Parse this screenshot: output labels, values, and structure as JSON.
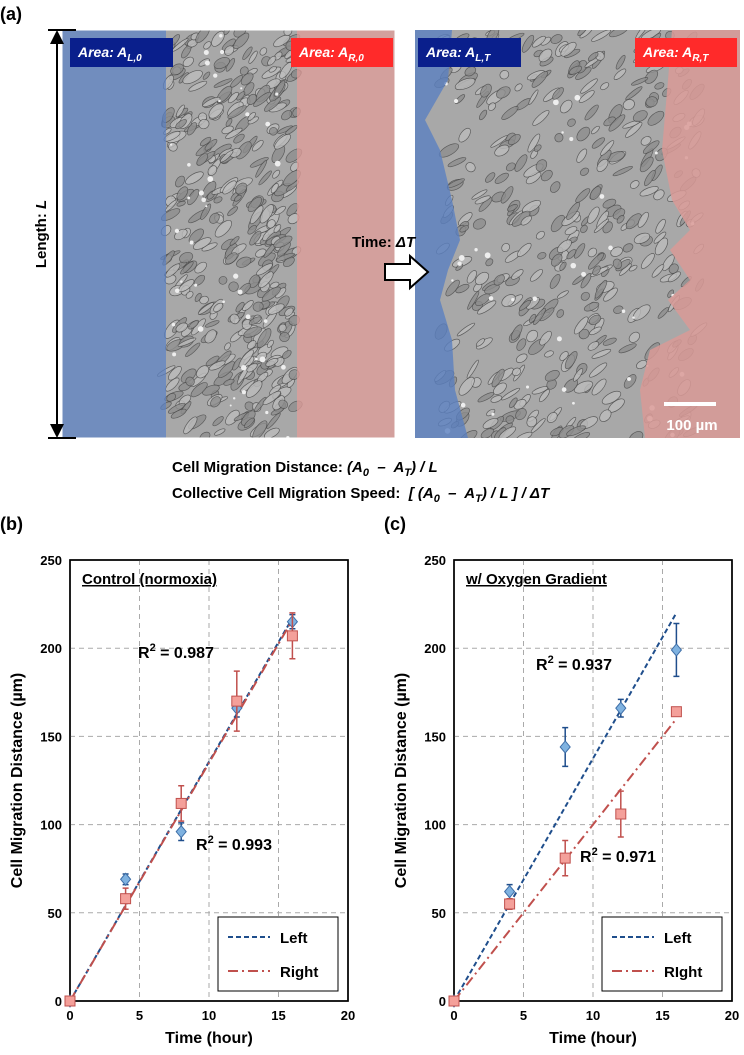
{
  "figure": {
    "panel_labels": [
      "(a)",
      "(b)",
      "(c)"
    ],
    "length_label": {
      "text": "Length: ",
      "var": "L"
    },
    "areas": [
      {
        "text": "Area: A",
        "sub": "L,0"
      },
      {
        "text": "Area: A",
        "sub": "R,0"
      },
      {
        "text": "Area: A",
        "sub": "L,T"
      },
      {
        "text": "Area: A",
        "sub": "R,T"
      }
    ],
    "time_label": {
      "text": "Time: ",
      "var": "ΔT"
    },
    "scale_bar": "100 µm",
    "formulas": [
      {
        "label": "Cell Migration Distance: ",
        "parts": [
          "(A",
          "0",
          "  –  A",
          "T",
          ") / L"
        ]
      },
      {
        "label": "Collective Cell Migration Speed:  ",
        "parts": [
          "[ (A",
          "0",
          "  –  A",
          "T",
          ") / L ] / ΔT"
        ]
      }
    ]
  },
  "chart_data": [
    {
      "type": "scatter",
      "title": "Control (normoxia)",
      "x_label": "Time (hour)",
      "y_label": "Cell Migration Distance (µm)",
      "x": [
        0,
        4,
        8,
        12,
        16
      ],
      "xlim": [
        0,
        20
      ],
      "xticks": [
        0,
        5,
        10,
        15,
        20
      ],
      "ylim": [
        0,
        250
      ],
      "yticks": [
        0,
        50,
        100,
        150,
        200,
        250
      ],
      "grid": true,
      "legend": "lower right",
      "series": [
        {
          "name": "Left",
          "color": "#7fb2e0",
          "marker": "diamond",
          "values": [
            0,
            69,
            96,
            166,
            215
          ],
          "errors": [
            2,
            3,
            5,
            5,
            4
          ],
          "trend": {
            "x": [
              0,
              16
            ],
            "values": [
              0,
              217
            ],
            "color": "#1f4e8c",
            "dash": "dashed"
          }
        },
        {
          "name": "Right",
          "color": "#f4a09a",
          "marker": "square",
          "values": [
            0,
            58,
            112,
            170,
            207
          ],
          "errors": [
            2,
            6,
            10,
            17,
            13
          ],
          "trend": {
            "x": [
              0,
              16
            ],
            "values": [
              0,
              216
            ],
            "color": "#c0504d",
            "dash": "dashdot"
          }
        }
      ],
      "annotations": [
        {
          "base": "R",
          "sup": "2",
          "text": " = 0.987"
        },
        {
          "base": "R",
          "sup": "2",
          "text": " = 0.993"
        }
      ]
    },
    {
      "type": "scatter",
      "title": "w/ Oxygen Gradient",
      "x_label": "Time (hour)",
      "y_label": "Cell Migration Distance (µm)",
      "x": [
        0,
        4,
        8,
        12,
        16
      ],
      "xlim": [
        0,
        20
      ],
      "xticks": [
        0,
        5,
        10,
        15,
        20
      ],
      "ylim": [
        0,
        250
      ],
      "yticks": [
        0,
        50,
        100,
        150,
        200,
        250
      ],
      "grid": true,
      "legend": "lower right",
      "series": [
        {
          "name": "Left",
          "color": "#7fb2e0",
          "marker": "diamond",
          "values": [
            0,
            62,
            144,
            166,
            199
          ],
          "errors": [
            2,
            4,
            11,
            5,
            15
          ],
          "trend": {
            "x": [
              0,
              16
            ],
            "values": [
              0,
              220
            ],
            "color": "#1f4e8c",
            "dash": "dashed"
          }
        },
        {
          "name": "RIght",
          "color": "#f4a09a",
          "marker": "square",
          "values": [
            0,
            55,
            81,
            106,
            164
          ],
          "errors": [
            2,
            3,
            10,
            13,
            2
          ],
          "trend": {
            "x": [
              0,
              16
            ],
            "values": [
              0,
              160
            ],
            "color": "#c0504d",
            "dash": "dashdot"
          }
        }
      ],
      "annotations": [
        {
          "base": "R",
          "sup": "2",
          "text": " = 0.937"
        },
        {
          "base": "R",
          "sup": "2",
          "text": " = 0.971"
        }
      ]
    }
  ]
}
